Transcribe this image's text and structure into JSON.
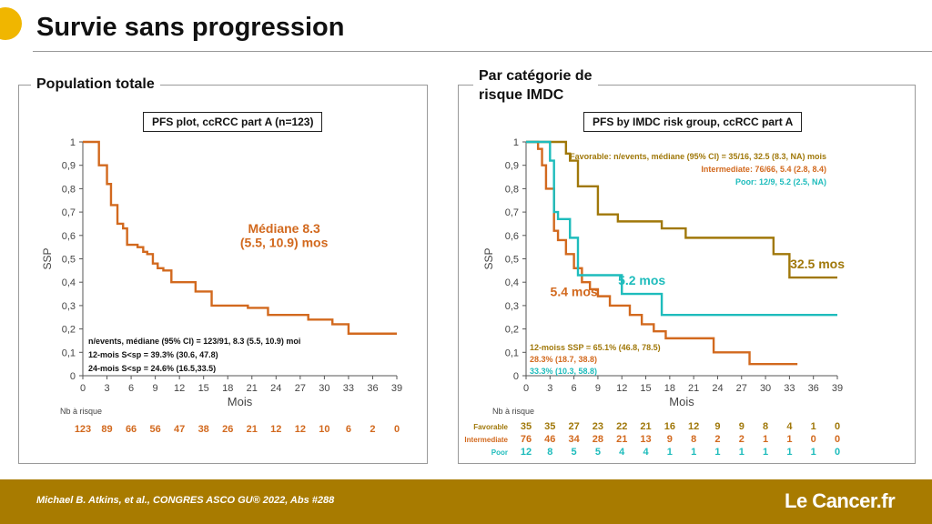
{
  "page": {
    "title": "Survie sans progression",
    "citation": "Michael B. Atkins, et al., CONGRES ASCO GU® 2022, Abs #288",
    "logo_pre": "Le ",
    "logo_c": "C",
    "logo_post": "ancer.fr"
  },
  "colors": {
    "accent": "#f0b600",
    "footer": "#a87b00",
    "total": "#d2691e",
    "favorable": "#a0780a",
    "intermediate": "#d2691e",
    "poor": "#1ebcbc"
  },
  "chart_data": [
    {
      "type": "line",
      "panel_title": "Population totale",
      "title": "PFS plot, ccRCC part A (n=123)",
      "xlabel": "Mois",
      "ylabel": "SSP",
      "xlim": [
        0,
        39
      ],
      "ylim": [
        0,
        1
      ],
      "xticks": [
        "0",
        "3",
        "6",
        "9",
        "12",
        "15",
        "18",
        "21",
        "24",
        "27",
        "30",
        "33",
        "36",
        "39"
      ],
      "yticks": [
        "0",
        "0,1",
        "0,2",
        "0,3",
        "0,4",
        "0,5",
        "0,6",
        "0,7",
        "0,8",
        "0,9",
        "1"
      ],
      "series": [
        {
          "step": [
            [
              0,
              1
            ],
            [
              1,
              1
            ],
            [
              2,
              0.9
            ],
            [
              3,
              0.82
            ],
            [
              3.5,
              0.73
            ],
            [
              4.3,
              0.65
            ],
            [
              5,
              0.63
            ],
            [
              5.5,
              0.56
            ],
            [
              6.8,
              0.55
            ],
            [
              7.5,
              0.53
            ],
            [
              8,
              0.52
            ],
            [
              8.7,
              0.48
            ],
            [
              9.3,
              0.46
            ],
            [
              10,
              0.45
            ],
            [
              11,
              0.4
            ],
            [
              12.5,
              0.4
            ],
            [
              14,
              0.36
            ],
            [
              15,
              0.36
            ],
            [
              16,
              0.3
            ],
            [
              19,
              0.3
            ],
            [
              20.5,
              0.29
            ],
            [
              23,
              0.26
            ],
            [
              28,
              0.24
            ],
            [
              31,
              0.22
            ],
            [
              33,
              0.18
            ],
            [
              39,
              0.18
            ]
          ],
          "end": 39
        }
      ],
      "annotations": [
        {
          "text": "Médiane 8.3",
          "x": 25,
          "y": 0.61
        },
        {
          "text": "(5.5, 10.9) mos",
          "x": 25,
          "y": 0.55
        }
      ],
      "stats": [
        "n/events, médiane (95% CI) = 123/91, 8.3 (5.5, 10.9) moi",
        "12-mois S<sp = 39.3% (30.6, 47.8)",
        "24-mois S<sp = 24.6% (16.5,33.5)"
      ],
      "risk_label": "Nb à risque",
      "risk": [
        {
          "name": "",
          "values": [
            "123",
            "89",
            "66",
            "56",
            "47",
            "38",
            "26",
            "21",
            "12",
            "12",
            "10",
            "6",
            "2",
            "0"
          ]
        }
      ]
    },
    {
      "type": "line",
      "panel_title_1": "Par catégorie de",
      "panel_title_2": "risque IMDC",
      "title": "PFS by IMDC risk group, ccRCC part A",
      "xlabel": "Mois",
      "ylabel": "SSP",
      "xlim": [
        0,
        39
      ],
      "ylim": [
        0,
        1
      ],
      "xticks": [
        "0",
        "3",
        "6",
        "9",
        "12",
        "15",
        "18",
        "21",
        "24",
        "27",
        "30",
        "33",
        "36",
        "39"
      ],
      "yticks": [
        "0",
        "0,1",
        "0,2",
        "0,3",
        "0,4",
        "0,5",
        "0,6",
        "0,7",
        "0,8",
        "0,9",
        "1"
      ],
      "series": [
        {
          "name": "Favorable",
          "step": [
            [
              0,
              1
            ],
            [
              4.5,
              1
            ],
            [
              5,
              0.95
            ],
            [
              5.5,
              0.92
            ],
            [
              6.5,
              0.81
            ],
            [
              9,
              0.69
            ],
            [
              11.5,
              0.66
            ],
            [
              17,
              0.63
            ],
            [
              20,
              0.59
            ],
            [
              31,
              0.52
            ],
            [
              33,
              0.42
            ],
            [
              39,
              0.42
            ]
          ]
        },
        {
          "name": "Intermediate",
          "step": [
            [
              0,
              1
            ],
            [
              1.5,
              0.97
            ],
            [
              2,
              0.9
            ],
            [
              2.5,
              0.8
            ],
            [
              3.5,
              0.62
            ],
            [
              4,
              0.58
            ],
            [
              5,
              0.52
            ],
            [
              6,
              0.46
            ],
            [
              7,
              0.4
            ],
            [
              8,
              0.37
            ],
            [
              9,
              0.34
            ],
            [
              10.5,
              0.3
            ],
            [
              13,
              0.26
            ],
            [
              14.5,
              0.22
            ],
            [
              16,
              0.19
            ],
            [
              17.5,
              0.16
            ],
            [
              23.5,
              0.1
            ],
            [
              28,
              0.05
            ],
            [
              34,
              0.05
            ]
          ]
        },
        {
          "name": "Poor",
          "step": [
            [
              0,
              1
            ],
            [
              2,
              1
            ],
            [
              3,
              0.92
            ],
            [
              3.5,
              0.7
            ],
            [
              4,
              0.67
            ],
            [
              5.5,
              0.59
            ],
            [
              6.5,
              0.43
            ],
            [
              10.5,
              0.43
            ],
            [
              12,
              0.35
            ],
            [
              16,
              0.35
            ],
            [
              17,
              0.26
            ],
            [
              39,
              0.26
            ]
          ]
        }
      ],
      "legend": [
        "Favorable: n/events, médiane (95% CI) = 35/16, 32.5 (8.3, NA) mois",
        "Intermediate: 76/66, 5.4 (2.8, 8.4)",
        "Poor: 12/9, 5.2 (2.5, NA)"
      ],
      "annotations": [
        {
          "text": "32.5 mos",
          "x": 36.5,
          "y": 0.46,
          "series": 0
        },
        {
          "text": "5.4 mos",
          "x": 6,
          "y": 0.34,
          "series": 1
        },
        {
          "text": "5.2 mos",
          "x": 14.5,
          "y": 0.39,
          "series": 2
        }
      ],
      "stats": [
        {
          "text": "12-moiss SSP = 65.1% (46.8, 78.5)",
          "series": 0
        },
        {
          "text": "28.3% (18.7, 38.8)",
          "series": 1
        },
        {
          "text": "33.3% (10.3, 58.8)",
          "series": 2
        }
      ],
      "risk_label": "Nb à risque",
      "risk": [
        {
          "name": "Favorable",
          "values": [
            "35",
            "35",
            "27",
            "23",
            "22",
            "21",
            "16",
            "12",
            "9",
            "9",
            "8",
            "4",
            "1",
            "0"
          ]
        },
        {
          "name": "Intermediate",
          "values": [
            "76",
            "46",
            "34",
            "28",
            "21",
            "13",
            "9",
            "8",
            "2",
            "2",
            "1",
            "1",
            "0",
            "0"
          ]
        },
        {
          "name": "Poor",
          "values": [
            "12",
            "8",
            "5",
            "5",
            "4",
            "4",
            "1",
            "1",
            "1",
            "1",
            "1",
            "1",
            "1",
            "0"
          ]
        }
      ]
    }
  ]
}
